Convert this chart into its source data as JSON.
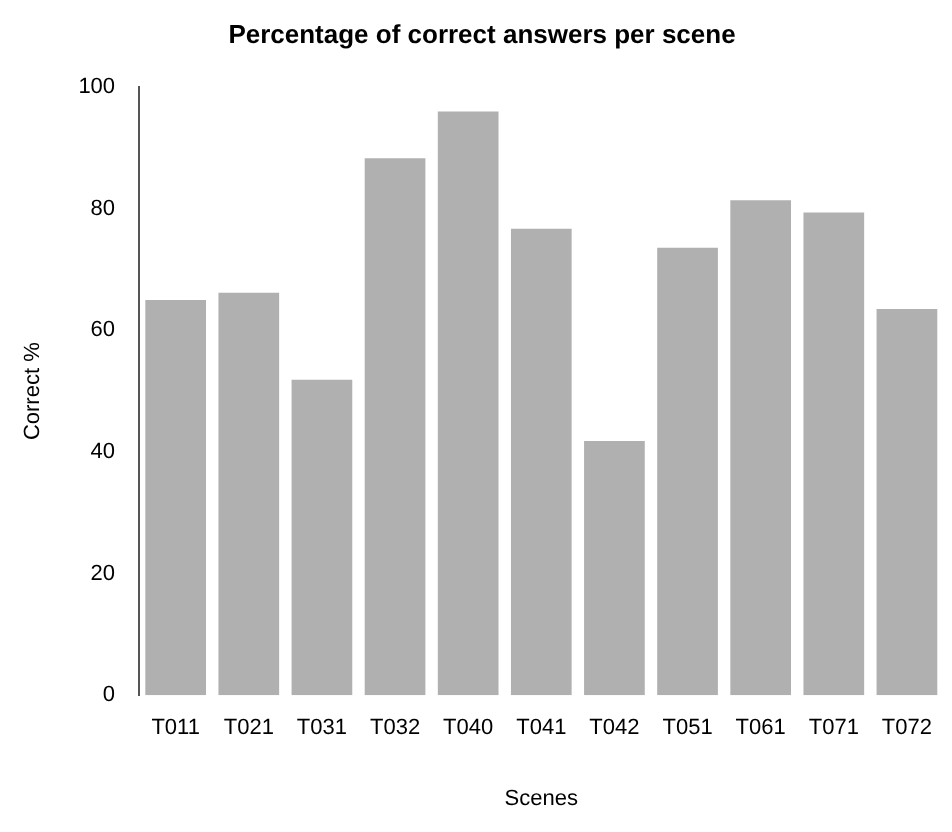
{
  "chart_data": {
    "type": "bar",
    "title": "Percentage of correct answers per scene",
    "xlabel": "Scenes",
    "ylabel": "Correct %",
    "categories": [
      "T011",
      "T021",
      "T031",
      "T032",
      "T040",
      "T041",
      "T042",
      "T051",
      "T061",
      "T071",
      "T072"
    ],
    "values": [
      65.0,
      66.2,
      51.9,
      88.3,
      96.0,
      76.7,
      41.8,
      73.6,
      81.4,
      79.4,
      63.5
    ],
    "color": "#b0b0b0",
    "ylim": [
      0,
      100
    ],
    "yticks": [
      0,
      20,
      40,
      60,
      80,
      100
    ],
    "grid": false,
    "legend": false
  }
}
